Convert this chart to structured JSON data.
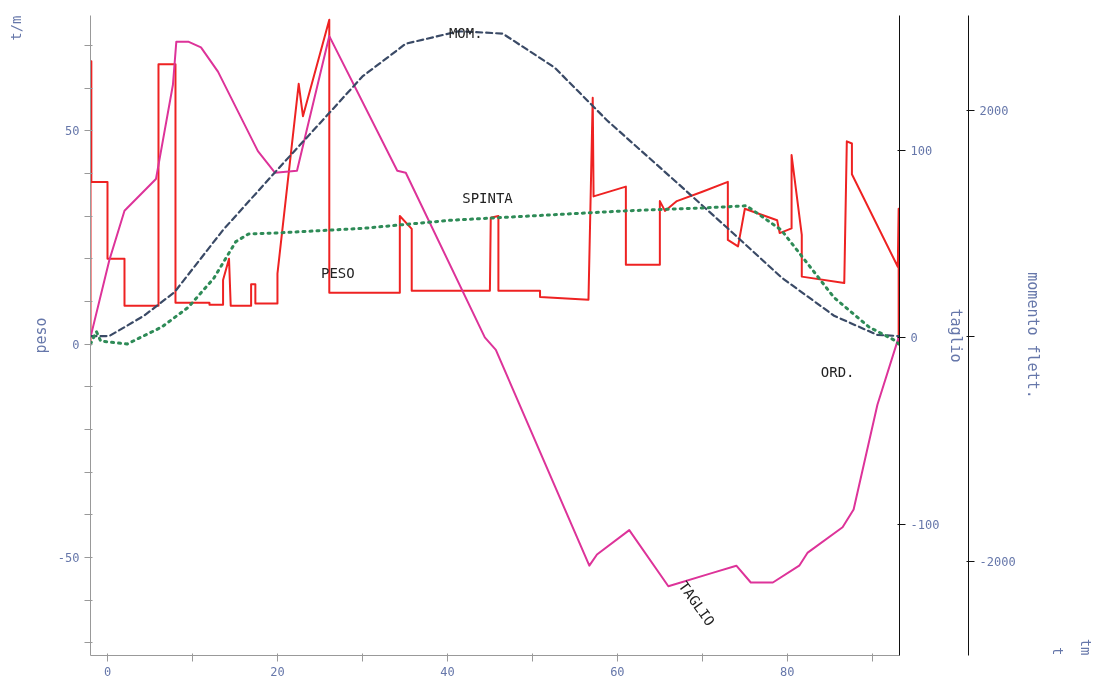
{
  "chart_data": {
    "type": "line",
    "xlim": [
      -2,
      93.2
    ],
    "xticks": [
      0,
      {
        "value": 10,
        "label": null
      },
      20,
      {
        "value": 30,
        "label": null
      },
      40,
      {
        "value": 50,
        "label": null
      },
      60,
      {
        "value": 70,
        "label": null
      },
      80,
      {
        "value": 90,
        "label": null
      }
    ],
    "ylim": [
      -73,
      77
    ],
    "yticks": [
      {
        "value": -70,
        "label": null
      },
      {
        "value": -60,
        "label": null
      },
      -50,
      {
        "value": -40,
        "label": null
      },
      {
        "value": -30,
        "label": null
      },
      {
        "value": -20,
        "label": null
      },
      {
        "value": -10,
        "label": null
      },
      0,
      {
        "value": 10,
        "label": null
      },
      {
        "value": 20,
        "label": null
      },
      {
        "value": 30,
        "label": null
      },
      {
        "value": 40,
        "label": null
      },
      50,
      {
        "value": 60,
        "label": null
      },
      {
        "value": 70,
        "label": null
      }
    ],
    "y2lim": [
      -170,
      172
    ],
    "y2ticks": [
      -100,
      0,
      100
    ],
    "y3lim": [
      -2830,
      2840
    ],
    "y3ticks": [
      -2000,
      {
        "value": 0,
        "label": null
      },
      2000
    ],
    "ylabel": "peso",
    "y2label": "taglio",
    "y3label": "momento flett.",
    "grid": false,
    "series": [
      {
        "name": "PESO",
        "color": "#ee2222",
        "line_style": "solid",
        "x": [
          -2,
          -2,
          -1.9,
          -1.9,
          0,
          0,
          2,
          2,
          6,
          6,
          8,
          8,
          12,
          12,
          13.6,
          13.6,
          14.3,
          14.5,
          14.5,
          16.9,
          16.9,
          17.4,
          17.4,
          20,
          20,
          22.5,
          23.0,
          26.1,
          26.1,
          34.4,
          34.4,
          35.8,
          35.8,
          45,
          45.1,
          46.0,
          46.0,
          50.9,
          50.9,
          56.6,
          57.1,
          57.2,
          61,
          61,
          65,
          65,
          65.6,
          67,
          70,
          73,
          73,
          74.2,
          75,
          78.8,
          79.1,
          80.5,
          80.5,
          81.7,
          81.7,
          86.7,
          87,
          87.6,
          87.6,
          93,
          93.1,
          93.1
        ],
        "values": [
          0,
          66.3,
          66.3,
          38,
          38,
          20,
          20,
          9,
          9,
          65.6,
          65.6,
          9.7,
          9.7,
          9.2,
          9.2,
          15,
          20,
          9,
          9,
          9,
          14,
          14,
          9.5,
          9.5,
          16.5,
          61,
          53.4,
          76,
          12,
          12,
          30,
          27,
          12.5,
          12.5,
          29.6,
          30,
          12.5,
          12.5,
          11,
          10.4,
          57.7,
          34.6,
          36.9,
          18.6,
          18.6,
          33.5,
          31.2,
          33.5,
          35.7,
          38,
          24.4,
          22.9,
          31.7,
          29,
          26,
          27.1,
          44.3,
          25.6,
          15.8,
          14.3,
          47.5,
          47,
          39.8,
          18.1,
          31.7,
          0
        ]
      },
      {
        "name": "TAGLIO",
        "color": "#dd3399",
        "line_style": "solid",
        "axis": "y2",
        "x": [
          -2,
          0.2,
          2,
          5.7,
          7.7,
          8.1,
          9.5,
          11,
          13,
          17.7,
          19.7,
          22.3,
          26.1,
          34.1,
          35.1,
          44.4,
          45.7,
          56.7,
          57.6,
          61.4,
          66,
          71.1,
          74,
          75.7,
          78.3,
          81.4,
          82.4,
          86.5,
          87.8,
          90.6,
          93.1
        ],
        "values": [
          0,
          41,
          67.7,
          84.6,
          135,
          158,
          158,
          155,
          142,
          99.5,
          88,
          89,
          161,
          89,
          88,
          0,
          -6.7,
          -122,
          -116,
          -103,
          -133,
          -126,
          -122,
          -131,
          -131,
          -122,
          -115,
          -101.5,
          -92,
          -36,
          0
        ]
      },
      {
        "name": "MOM.",
        "color": "#3a4a66",
        "line_style": "dashed",
        "axis": "y3",
        "x": [
          -2,
          0.2,
          4.3,
          7.9,
          13.6,
          19.7,
          25.9,
          30,
          35.1,
          41.3,
          46.5,
          52.6,
          58.8,
          67,
          73.2,
          79.3,
          85.5,
          90.6,
          93.1
        ],
        "values": [
          0,
          0,
          180,
          390,
          940,
          1450,
          1960,
          2300,
          2590,
          2700,
          2680,
          2380,
          1910,
          1360,
          940,
          520,
          180,
          10,
          0
        ]
      },
      {
        "name": "SPINTA",
        "color": "#2e8b57",
        "line_style": "dotted",
        "x": [
          -2,
          -1.3,
          -0.8,
          2.3,
          6.4,
          9.5,
          12.5,
          15.1,
          16.6,
          19.7,
          30,
          40.3,
          50.6,
          60.8,
          70.1,
          75.2,
          79.3,
          82.4,
          85.5,
          89.6,
          92.8,
          93.1
        ],
        "values": [
          0,
          2.9,
          0.7,
          0,
          4,
          8.6,
          15.4,
          24,
          25.8,
          26,
          27.1,
          29,
          30.1,
          31.2,
          31.9,
          32.4,
          26.7,
          18.8,
          10.9,
          4,
          0.7,
          0
        ]
      }
    ],
    "annotations": [
      "t/m",
      "t",
      "tm",
      "ORD."
    ]
  }
}
